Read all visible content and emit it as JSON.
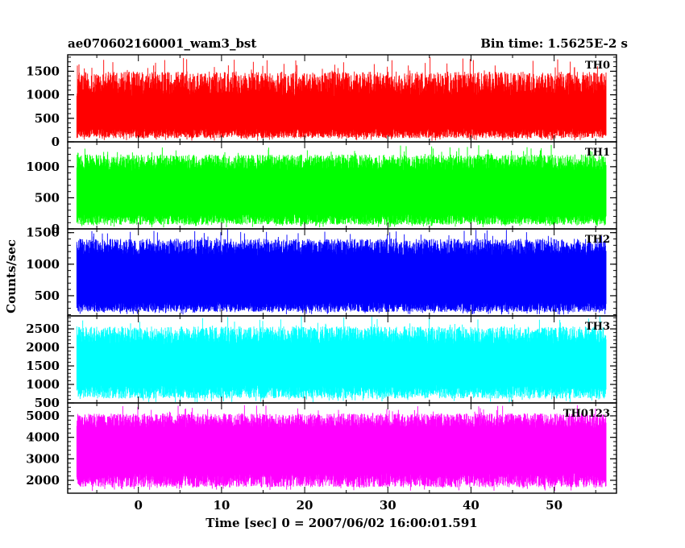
{
  "header": {
    "title": "ae070602160001_wam3_bst",
    "bin_time": "Bin time: 1.5625E-2 s"
  },
  "chart_data": {
    "type": "line",
    "xlabel": "Time [sec] 0 = 2007/06/02 16:00:01.591",
    "ylabel": "Counts/sec",
    "xlim": [
      -8.5,
      57.5
    ],
    "x_ticks": [
      0,
      10,
      20,
      30,
      40,
      50
    ],
    "x_data_range": [
      -7.4,
      56.2
    ],
    "grid": false,
    "panels": [
      {
        "name": "TH0",
        "color": "#ff0000",
        "ylim": [
          0,
          1850
        ],
        "yticks": [
          0,
          500,
          1000,
          1500
        ],
        "typical_range": [
          180,
          1100
        ],
        "min_approx": 20,
        "max_approx": 1800
      },
      {
        "name": "TH1",
        "color": "#00ff00",
        "ylim": [
          0,
          1400
        ],
        "yticks": [
          0,
          500,
          1000
        ],
        "typical_range": [
          150,
          1000
        ],
        "min_approx": 20,
        "max_approx": 1350
      },
      {
        "name": "TH2",
        "color": "#0000ff",
        "ylim": [
          180,
          1560
        ],
        "yticks": [
          500,
          1000,
          1500
        ],
        "typical_range": [
          320,
          1200
        ],
        "min_approx": 200,
        "max_approx": 1560
      },
      {
        "name": "TH3",
        "color": "#00ffff",
        "ylim": [
          500,
          2850
        ],
        "yticks": [
          500,
          1000,
          1500,
          2000,
          2500
        ],
        "typical_range": [
          800,
          2200
        ],
        "min_approx": 520,
        "max_approx": 2850
      },
      {
        "name": "TH0123",
        "color": "#ff00ff",
        "ylim": [
          1400,
          5600
        ],
        "yticks": [
          2000,
          3000,
          4000,
          5000
        ],
        "typical_range": [
          2000,
          4600
        ],
        "min_approx": 1500,
        "max_approx": 5500
      }
    ]
  }
}
